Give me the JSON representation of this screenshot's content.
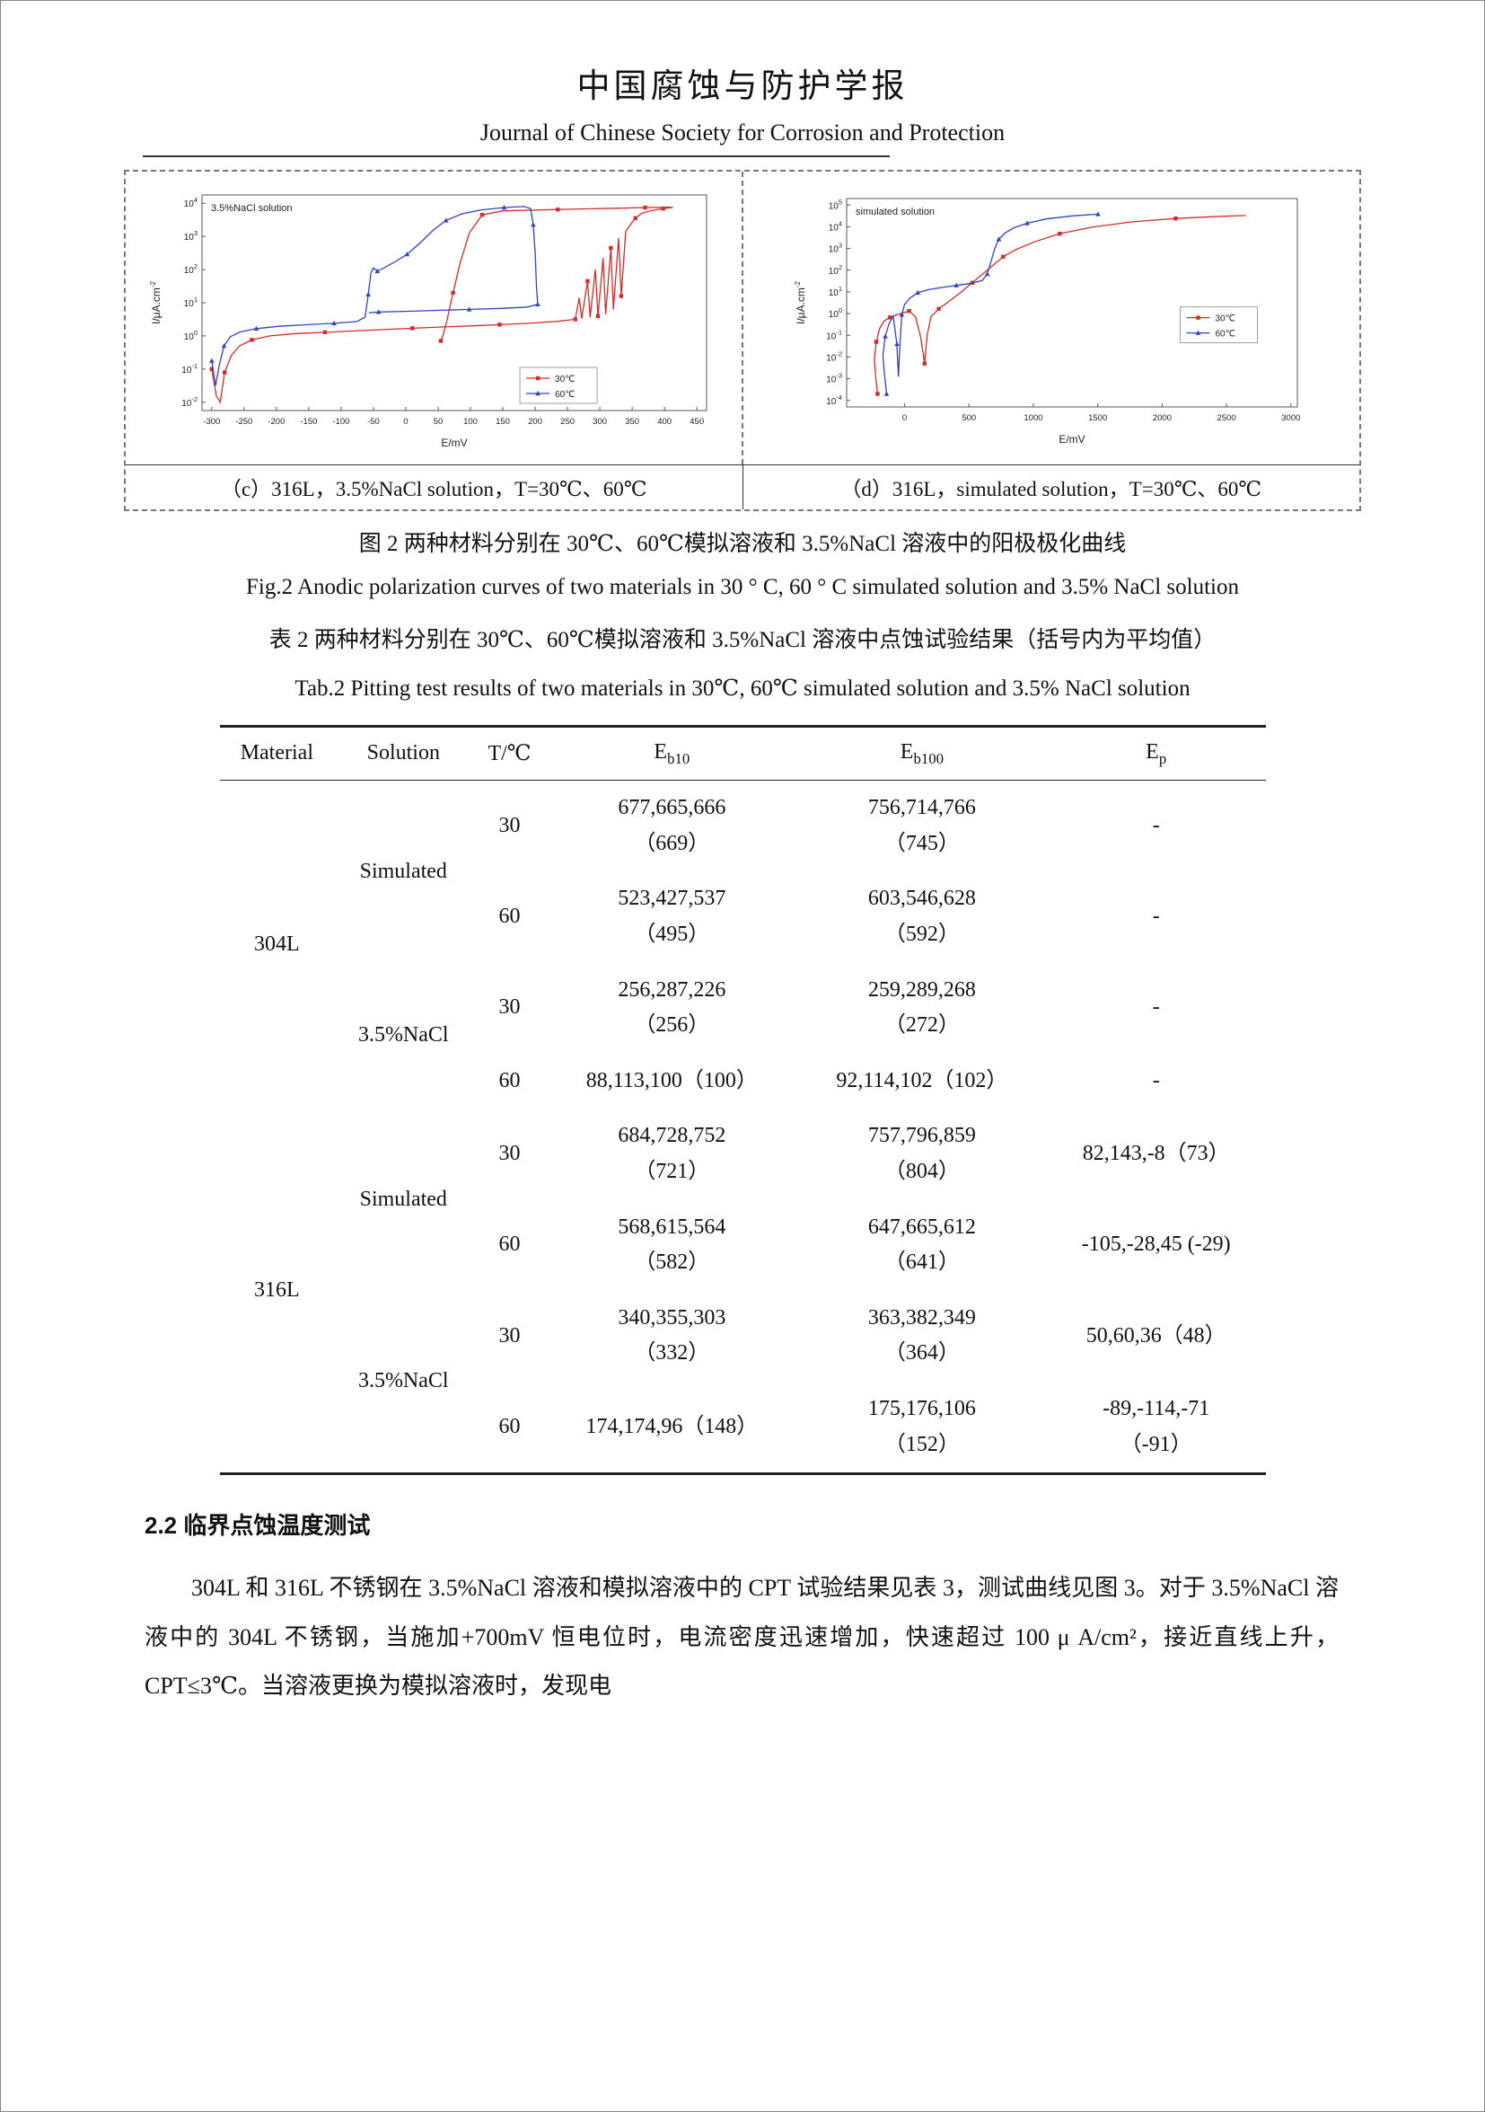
{
  "header": {
    "title_cn": "中国腐蚀与防护学报",
    "title_en": "Journal of Chinese Society for Corrosion and Protection"
  },
  "figure": {
    "caption_c": "（c）316L，3.5%NaCl solution，T=30℃、60℃",
    "caption_d": "（d）316L，simulated solution，T=30℃、60℃",
    "title_cn": "图 2  两种材料分别在 30℃、60℃模拟溶液和 3.5%NaCl 溶液中的阳极极化曲线",
    "title_en": "Fig.2 Anodic polarization curves of two materials in 30 ° C, 60 ° C simulated solution and 3.5% NaCl solution"
  },
  "table": {
    "title_cn": "表 2  两种材料分别在 30℃、60℃模拟溶液和 3.5%NaCl 溶液中点蚀试验结果（括号内为平均值）",
    "title_en": "Tab.2 Pitting test results of two materials in 30℃, 60℃  simulated solution and 3.5% NaCl solution",
    "columns": [
      {
        "label": "Material"
      },
      {
        "label": "Solution"
      },
      {
        "label": "T/℃"
      },
      {
        "label": "E",
        "sub": "b10"
      },
      {
        "label": "E",
        "sub": "b100"
      },
      {
        "label": "E",
        "sub": "p"
      }
    ],
    "groups": [
      {
        "material": "304L",
        "solutions": [
          {
            "solution": "Simulated",
            "rows": [
              {
                "t": "30",
                "eb10": [
                  "677,665,666",
                  "（669）"
                ],
                "eb100": [
                  "756,714,766",
                  "（745）"
                ],
                "ep": [
                  "-"
                ]
              },
              {
                "t": "60",
                "eb10": [
                  "523,427,537",
                  "（495）"
                ],
                "eb100": [
                  "603,546,628",
                  "（592）"
                ],
                "ep": [
                  "-"
                ]
              }
            ]
          },
          {
            "solution": "3.5%NaCl",
            "rows": [
              {
                "t": "30",
                "eb10": [
                  "256,287,226",
                  "（256）"
                ],
                "eb100": [
                  "259,289,268",
                  "（272）"
                ],
                "ep": [
                  "-"
                ]
              },
              {
                "t": "60",
                "eb10": [
                  "88,113,100（100）"
                ],
                "eb100": [
                  "92,114,102（102）"
                ],
                "ep": [
                  "-"
                ]
              }
            ]
          }
        ]
      },
      {
        "material": "316L",
        "solutions": [
          {
            "solution": "Simulated",
            "rows": [
              {
                "t": "30",
                "eb10": [
                  "684,728,752",
                  "（721）"
                ],
                "eb100": [
                  "757,796,859",
                  "（804）"
                ],
                "ep": [
                  "82,143,-8（73）"
                ]
              },
              {
                "t": "60",
                "eb10": [
                  "568,615,564",
                  "（582）"
                ],
                "eb100": [
                  "647,665,612",
                  "（641）"
                ],
                "ep": [
                  "-105,-28,45 (-29)"
                ]
              }
            ]
          },
          {
            "solution": "3.5%NaCl",
            "rows": [
              {
                "t": "30",
                "eb10": [
                  "340,355,303",
                  "（332）"
                ],
                "eb100": [
                  "363,382,349",
                  "（364）"
                ],
                "ep": [
                  "50,60,36（48）"
                ]
              },
              {
                "t": "60",
                "eb10": [
                  "174,174,96（148）"
                ],
                "eb100": [
                  "175,176,106",
                  "（152）"
                ],
                "ep": [
                  "-89,-114,-71",
                  "（-91）"
                ]
              }
            ]
          }
        ]
      }
    ]
  },
  "section": {
    "heading": "2.2 临界点蚀温度测试",
    "paragraph": "304L 和 316L 不锈钢在 3.5%NaCl 溶液和模拟溶液中的 CPT 试验结果见表 3，测试曲线见图 3。对于 3.5%NaCl 溶液中的 304L 不锈钢，当施加+700mV 恒电位时，电流密度迅速增加，快速超过 100 μ A/cm²，接近直线上升，CPT≤3℃。当溶液更换为模拟溶液时，发现电"
  },
  "chart_data": [
    {
      "type": "line",
      "title": "",
      "inner_label": "3.5%NaCl solution",
      "xlabel": "E/mV",
      "ylabel": "I/μA.cm",
      "ylabel_sup": "-2",
      "xlim": [
        -315,
        465
      ],
      "x_ticks": [
        -300,
        -250,
        -200,
        -150,
        -100,
        -50,
        0,
        50,
        100,
        150,
        200,
        250,
        300,
        350,
        400,
        450
      ],
      "ylim_exp": [
        -2.25,
        4.25
      ],
      "y_ticks": [
        -2,
        -1,
        0,
        1,
        2,
        3,
        4
      ],
      "legend_pos": [
        0.63,
        0.8
      ],
      "grid": false,
      "series": [
        {
          "name": "30℃",
          "color": "#d62a2a",
          "marker": "square",
          "points": [
            [
              -300,
              -1.0
            ],
            [
              -293,
              -1.8
            ],
            [
              -287,
              -2.0
            ],
            [
              -280,
              -1.1
            ],
            [
              -270,
              -0.6
            ],
            [
              -257,
              -0.3
            ],
            [
              -238,
              -0.12
            ],
            [
              -210,
              0.0
            ],
            [
              -170,
              0.07
            ],
            [
              -125,
              0.11
            ],
            [
              -80,
              0.15
            ],
            [
              -35,
              0.19
            ],
            [
              10,
              0.23
            ],
            [
              55,
              0.27
            ],
            [
              100,
              0.3
            ],
            [
              145,
              0.34
            ],
            [
              190,
              0.38
            ],
            [
              235,
              0.44
            ],
            [
              262,
              0.5
            ],
            [
              268,
              1.15
            ],
            [
              272,
              0.52
            ],
            [
              281,
              1.65
            ],
            [
              285,
              0.56
            ],
            [
              293,
              2.0
            ],
            [
              297,
              0.6
            ],
            [
              305,
              2.35
            ],
            [
              309,
              0.66
            ],
            [
              317,
              2.65
            ],
            [
              321,
              0.8
            ],
            [
              329,
              2.95
            ],
            [
              333,
              1.2
            ],
            [
              340,
              3.15
            ],
            [
              347,
              3.35
            ],
            [
              355,
              3.55
            ],
            [
              365,
              3.7
            ],
            [
              380,
              3.78
            ],
            [
              398,
              3.84
            ],
            [
              413,
              3.87
            ],
            [
              408,
              3.88
            ],
            [
              370,
              3.87
            ],
            [
              325,
              3.85
            ],
            [
              280,
              3.83
            ],
            [
              235,
              3.81
            ],
            [
              190,
              3.79
            ],
            [
              150,
              3.77
            ],
            [
              118,
              3.65
            ],
            [
              98,
              3.1
            ],
            [
              84,
              2.2
            ],
            [
              73,
              1.3
            ],
            [
              64,
              0.5
            ],
            [
              58,
              0.05
            ],
            [
              54,
              -0.15
            ]
          ]
        },
        {
          "name": "60℃",
          "color": "#2f43c4",
          "marker": "triangle",
          "points": [
            [
              -300,
              -0.75
            ],
            [
              -294,
              -1.5
            ],
            [
              -288,
              -0.85
            ],
            [
              -281,
              -0.3
            ],
            [
              -271,
              -0.02
            ],
            [
              -256,
              0.12
            ],
            [
              -231,
              0.22
            ],
            [
              -196,
              0.29
            ],
            [
              -151,
              0.34
            ],
            [
              -111,
              0.38
            ],
            [
              -76,
              0.43
            ],
            [
              -63,
              0.56
            ],
            [
              -58,
              1.25
            ],
            [
              -54,
              1.9
            ],
            [
              -50,
              2.05
            ],
            [
              -44,
              1.95
            ],
            [
              -33,
              2.06
            ],
            [
              -18,
              2.22
            ],
            [
              2,
              2.46
            ],
            [
              22,
              2.8
            ],
            [
              42,
              3.18
            ],
            [
              62,
              3.48
            ],
            [
              87,
              3.68
            ],
            [
              117,
              3.8
            ],
            [
              152,
              3.87
            ],
            [
              182,
              3.9
            ],
            [
              193,
              3.84
            ],
            [
              197,
              3.35
            ],
            [
              200,
              2.5
            ],
            [
              202,
              1.5
            ],
            [
              204,
              0.95
            ],
            [
              188,
              0.87
            ],
            [
              148,
              0.83
            ],
            [
              98,
              0.8
            ],
            [
              48,
              0.77
            ],
            [
              -2,
              0.74
            ],
            [
              -42,
              0.72
            ],
            [
              -57,
              0.7
            ]
          ]
        }
      ]
    },
    {
      "type": "line",
      "title": "",
      "inner_label": "simulated solution",
      "xlabel": "E/mV",
      "ylabel": "I/μA.cm",
      "ylabel_sup": "-2",
      "xlim": [
        -450,
        3050
      ],
      "x_ticks": [
        0,
        500,
        1000,
        1500,
        2000,
        2500,
        3000
      ],
      "ylim_exp": [
        -4.3,
        5.3
      ],
      "y_ticks": [
        -4,
        -3,
        -2,
        -1,
        0,
        1,
        2,
        3,
        4,
        5
      ],
      "legend_pos": [
        0.74,
        0.52
      ],
      "grid": false,
      "series": [
        {
          "name": "30℃",
          "color": "#d62a2a",
          "marker": "square",
          "points": [
            [
              -210,
              -3.7
            ],
            [
              -225,
              -2.9
            ],
            [
              -235,
              -2.1
            ],
            [
              -220,
              -1.3
            ],
            [
              -195,
              -0.7
            ],
            [
              -160,
              -0.35
            ],
            [
              -115,
              -0.18
            ],
            [
              -65,
              -0.06
            ],
            [
              -15,
              0.02
            ],
            [
              35,
              0.12
            ],
            [
              85,
              -0.15
            ],
            [
              125,
              -1.1
            ],
            [
              155,
              -2.3
            ],
            [
              175,
              -1.0
            ],
            [
              205,
              -0.15
            ],
            [
              265,
              0.22
            ],
            [
              335,
              0.52
            ],
            [
              425,
              0.92
            ],
            [
              525,
              1.42
            ],
            [
              625,
              1.92
            ],
            [
              705,
              2.32
            ],
            [
              765,
              2.62
            ],
            [
              855,
              2.92
            ],
            [
              1005,
              3.3
            ],
            [
              1205,
              3.68
            ],
            [
              1455,
              3.98
            ],
            [
              1755,
              4.22
            ],
            [
              2105,
              4.38
            ],
            [
              2455,
              4.48
            ],
            [
              2650,
              4.52
            ]
          ]
        },
        {
          "name": "60℃",
          "color": "#2f43c4",
          "marker": "triangle",
          "points": [
            [
              -140,
              -3.7
            ],
            [
              -158,
              -2.7
            ],
            [
              -168,
              -1.9
            ],
            [
              -150,
              -1.05
            ],
            [
              -120,
              -0.45
            ],
            [
              -88,
              -0.12
            ],
            [
              -60,
              -1.4
            ],
            [
              -48,
              -2.9
            ],
            [
              -36,
              -1.4
            ],
            [
              -22,
              -0.05
            ],
            [
              0,
              0.42
            ],
            [
              42,
              0.72
            ],
            [
              102,
              0.96
            ],
            [
              182,
              1.1
            ],
            [
              282,
              1.2
            ],
            [
              402,
              1.3
            ],
            [
              522,
              1.4
            ],
            [
              602,
              1.52
            ],
            [
              642,
              1.82
            ],
            [
              672,
              2.42
            ],
            [
              702,
              3.02
            ],
            [
              732,
              3.42
            ],
            [
              782,
              3.72
            ],
            [
              852,
              3.96
            ],
            [
              952,
              4.16
            ],
            [
              1102,
              4.36
            ],
            [
              1302,
              4.5
            ],
            [
              1502,
              4.58
            ]
          ]
        }
      ]
    }
  ]
}
